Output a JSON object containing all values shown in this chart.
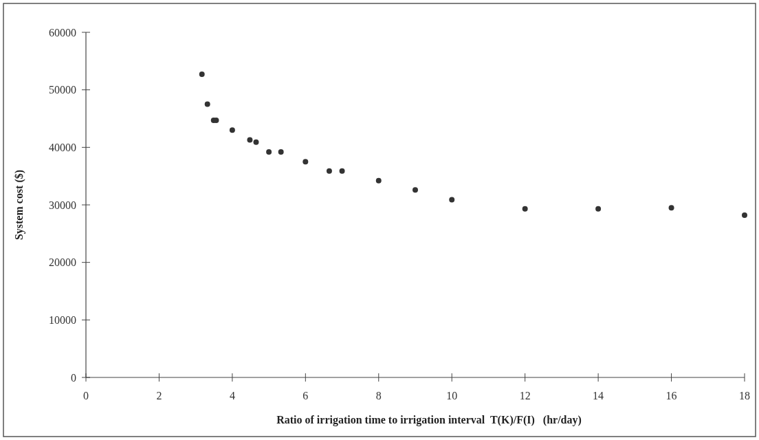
{
  "chart_data": {
    "type": "scatter",
    "xlabel": "Ratio of irrigation time to irrigation interval  T(K)/F(I)   (hr/day)",
    "ylabel": "System cost ($)",
    "x": [
      3.17,
      3.32,
      3.49,
      3.56,
      4.0,
      4.48,
      4.65,
      5.0,
      5.33,
      6,
      6.65,
      7,
      8,
      9,
      10,
      12,
      14,
      16,
      18
    ],
    "series": [
      {
        "color": "#333333",
        "values": [
          52700,
          47500,
          44700,
          44700,
          43000,
          41300,
          40900,
          39200,
          39200,
          37500,
          35900,
          35900,
          34200,
          32600,
          30900,
          29300,
          29300,
          29500,
          28200
        ]
      }
    ],
    "xlim": [
      0,
      18
    ],
    "xticks": [
      0,
      2,
      4,
      6,
      8,
      10,
      12,
      14,
      16,
      18
    ],
    "ylim": [
      0,
      60000
    ],
    "yticks": [
      0,
      10000,
      20000,
      30000,
      40000,
      50000,
      60000
    ],
    "grid": false,
    "marker": "circle"
  }
}
